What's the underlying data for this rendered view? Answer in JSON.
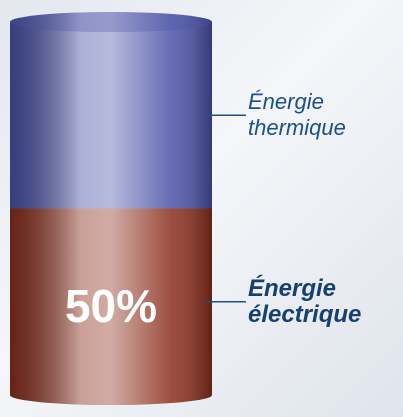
{
  "chart_data": {
    "type": "bar",
    "stacked": true,
    "series": [
      {
        "name": "Énergie électrique",
        "color": "#8b2e1c",
        "values": [
          50
        ],
        "value_labels": [
          "50%"
        ]
      },
      {
        "name": "Énergie thermique",
        "color": "#4a52a6",
        "values": [
          50
        ]
      }
    ]
  }
}
